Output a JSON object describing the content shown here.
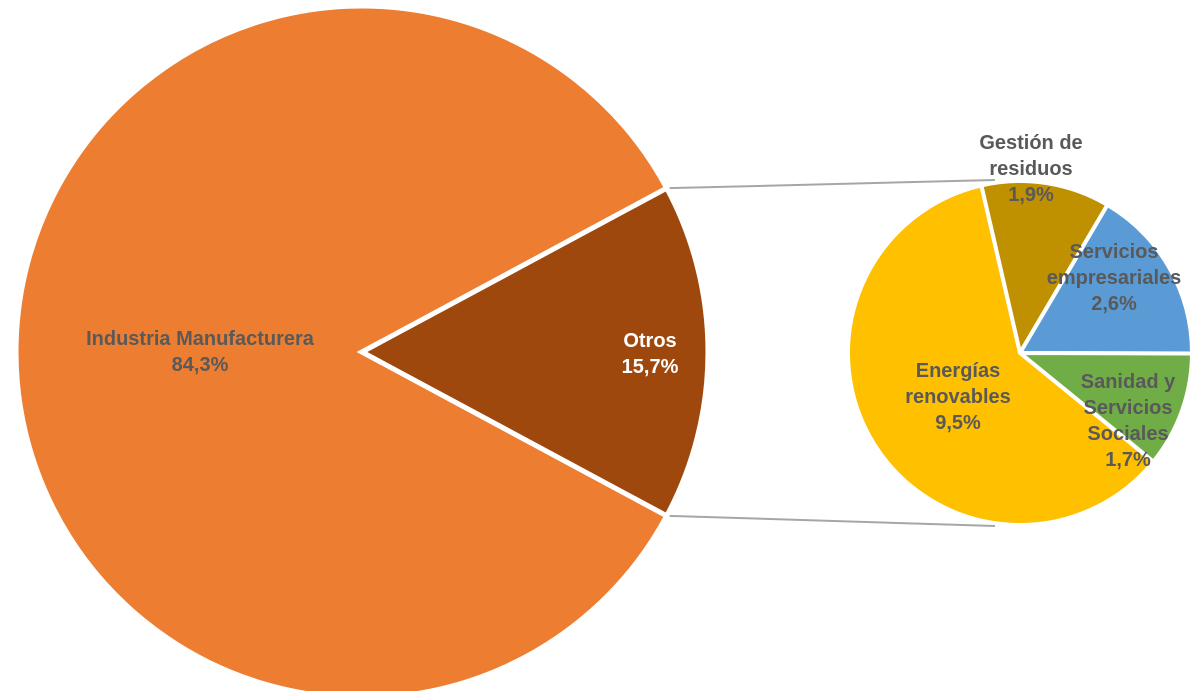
{
  "chart_data": {
    "type": "pie",
    "main_pie": {
      "slices": [
        {
          "label": "Industria Manufacturera",
          "value_label": "84,3%",
          "value": 84.3,
          "color": "#ED7D31",
          "text_color": "#595959"
        },
        {
          "label": "Otros",
          "value_label": "15,7%",
          "value": 15.7,
          "color": "#9E480E",
          "text_color": "#FFFFFF"
        }
      ]
    },
    "secondary_pie": {
      "breakdown_of": "Otros",
      "slices": [
        {
          "label_lines": [
            "Gestión de",
            "residuos"
          ],
          "value_label": "1,9%",
          "value": 1.9,
          "color": "#BF9000"
        },
        {
          "label_lines": [
            "Servicios",
            "empresariales"
          ],
          "value_label": "2,6%",
          "value": 2.6,
          "color": "#5B9BD5"
        },
        {
          "label_lines": [
            "Sanidad y",
            "Servicios",
            "Sociales"
          ],
          "value_label": "1,7%",
          "value": 1.7,
          "color": "#70AD47"
        },
        {
          "label_lines": [
            "Energías",
            "renovables"
          ],
          "value_label": "9,5%",
          "value": 9.5,
          "color": "#FFC000"
        }
      ]
    },
    "connector_color": "#A6A6A6",
    "legend": "none",
    "title": ""
  }
}
